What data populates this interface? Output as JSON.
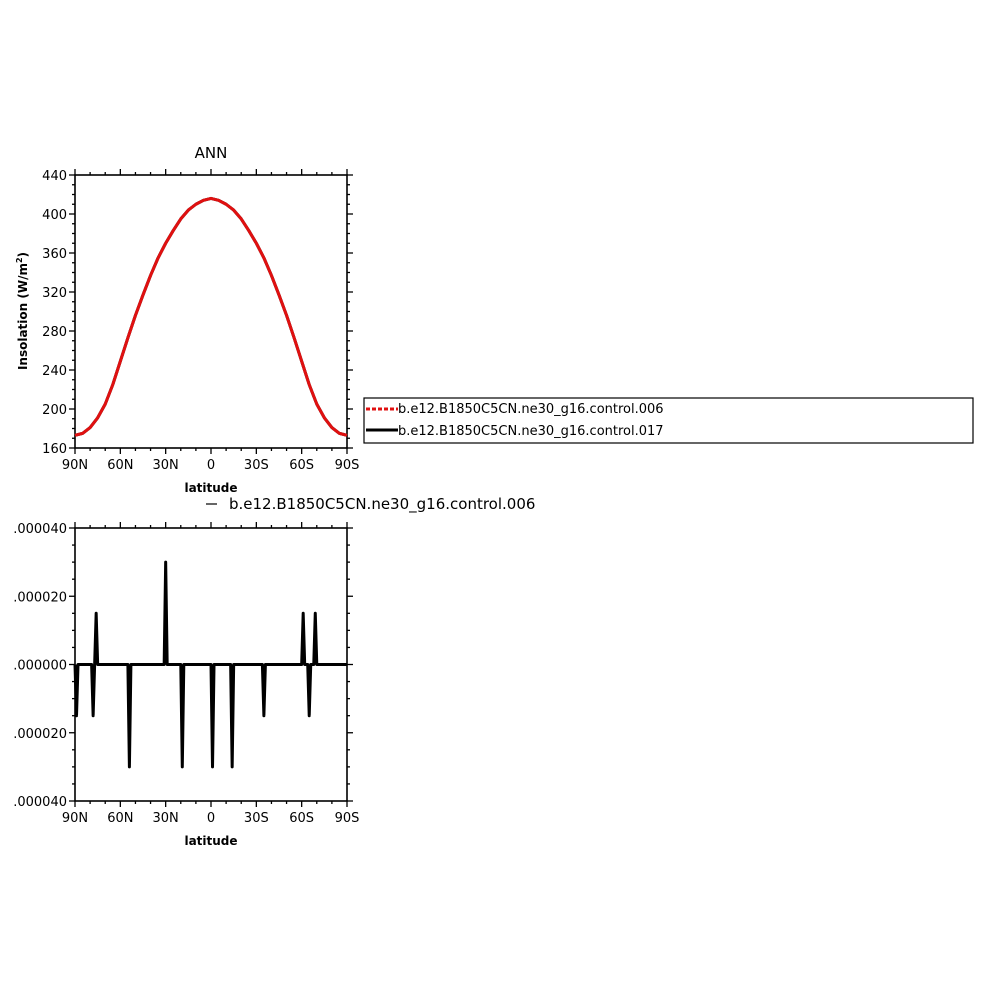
{
  "chart_data": [
    {
      "type": "line",
      "title": "ANN",
      "xlabel": "latitude",
      "ylabel": "Insolation  (W/m",
      "ylabel_sup": "2",
      "ylabel_close": ")",
      "xlim": [
        -90,
        90
      ],
      "ylim": [
        160,
        440
      ],
      "xticks": [
        -90,
        -60,
        -30,
        0,
        30,
        60,
        90
      ],
      "xtick_labels": [
        "90N",
        "60N",
        "30N",
        "0",
        "30S",
        "60S",
        "90S"
      ],
      "yticks": [
        160,
        200,
        240,
        280,
        320,
        360,
        400,
        440
      ],
      "ytick_labels": [
        "160",
        "200",
        "240",
        "280",
        "320",
        "360",
        "400",
        "440"
      ],
      "grid": false,
      "legend_position": "right",
      "legend": [
        {
          "label": "b.e12.B1850C5CN.ne30_g16.control.006",
          "color": "#e01010",
          "dashed": true
        },
        {
          "label": "b.e12.B1850C5CN.ne30_g16.control.017",
          "color": "#000000",
          "dashed": false
        }
      ],
      "series": [
        {
          "name": "b.e12.B1850C5CN.ne30_g16.control.006",
          "color": "#e01010",
          "x": [
            -90,
            -85,
            -80,
            -75,
            -70,
            -65,
            -60,
            -55,
            -50,
            -45,
            -40,
            -35,
            -30,
            -25,
            -20,
            -15,
            -10,
            -5,
            0,
            5,
            10,
            15,
            20,
            25,
            30,
            35,
            40,
            45,
            50,
            55,
            60,
            65,
            70,
            75,
            80,
            85,
            90
          ],
          "y": [
            173,
            175,
            181,
            191,
            205,
            225,
            249,
            273,
            296,
            317,
            337,
            355,
            370,
            383,
            395,
            404,
            410,
            414,
            416,
            414,
            410,
            404,
            395,
            383,
            370,
            355,
            337,
            317,
            296,
            273,
            249,
            225,
            205,
            191,
            181,
            175,
            173
          ]
        },
        {
          "name": "b.e12.B1850C5CN.ne30_g16.control.017",
          "color": "#000000",
          "x": [
            -90,
            -85,
            -80,
            -75,
            -70,
            -65,
            -60,
            -55,
            -50,
            -45,
            -40,
            -35,
            -30,
            -25,
            -20,
            -15,
            -10,
            -5,
            0,
            5,
            10,
            15,
            20,
            25,
            30,
            35,
            40,
            45,
            50,
            55,
            60,
            65,
            70,
            75,
            80,
            85,
            90
          ],
          "y": [
            173,
            175,
            181,
            191,
            205,
            225,
            249,
            273,
            296,
            317,
            337,
            355,
            370,
            383,
            395,
            404,
            410,
            414,
            416,
            414,
            410,
            404,
            395,
            383,
            370,
            355,
            337,
            317,
            296,
            273,
            249,
            225,
            205,
            191,
            181,
            175,
            173
          ]
        }
      ]
    },
    {
      "type": "line",
      "title": "",
      "legend_text": "b.e12.B1850C5CN.ne30_g16.control.006",
      "xlabel": "latitude",
      "ylabel": "",
      "xlim": [
        -90,
        90
      ],
      "ylim": [
        -4e-05,
        4e-05
      ],
      "xticks": [
        -90,
        -60,
        -30,
        0,
        30,
        60,
        90
      ],
      "xtick_labels": [
        "90N",
        "60N",
        "30N",
        "0",
        "30S",
        "60S",
        "90S"
      ],
      "yticks": [
        4e-05,
        2e-05,
        0,
        -2e-05,
        -4e-05
      ],
      "ytick_labels": [
        ".000040",
        ".000020",
        ".000000",
        ".000020",
        ".000040"
      ],
      "grid": false,
      "series": [
        {
          "name": "b.e12.B1850C5CN.ne30_g16.control.006",
          "color": "#000000",
          "x": [
            -90,
            -89,
            -88,
            -87,
            -79,
            -78,
            -77,
            -76,
            -75,
            -66,
            -55,
            -54,
            -53,
            -31,
            -30,
            -29,
            -20,
            -19,
            -18,
            0,
            1,
            2,
            13,
            14,
            15,
            34,
            35,
            36,
            60,
            61,
            62,
            64,
            65,
            66,
            68,
            69,
            70,
            74,
            75,
            76,
            90
          ],
          "y": [
            0,
            -1.5e-05,
            0,
            0,
            0,
            -1.5e-05,
            0,
            1.5e-05,
            0,
            0,
            0,
            -3e-05,
            0,
            0,
            3e-05,
            0,
            0,
            -3e-05,
            0,
            0,
            -3e-05,
            0,
            0,
            -3e-05,
            0,
            0,
            -1.5e-05,
            0,
            0,
            1.5e-05,
            0,
            0,
            -1.5e-05,
            0,
            0,
            1.5e-05,
            0,
            0,
            0,
            0,
            0
          ]
        }
      ]
    }
  ]
}
